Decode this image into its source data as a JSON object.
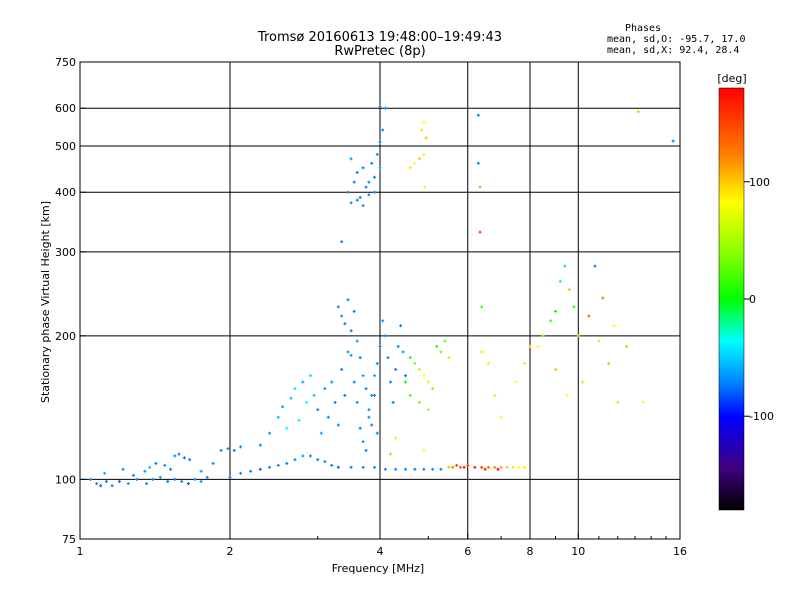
{
  "chart_data": {
    "type": "scatter",
    "title": "Tromsø 20160613 19:48:00–19:49:43",
    "subtitle": "RwPretec (8p)",
    "xlabel": "Frequency [MHz]",
    "ylabel": "Stationary phase Virtual Height [km]",
    "x_scale": "log",
    "y_scale": "log",
    "xlim": [
      1,
      16
    ],
    "ylim": [
      75,
      750
    ],
    "x_ticks": [
      1,
      2,
      4,
      6,
      8,
      10,
      16
    ],
    "x_tick_labels": [
      "1",
      "2",
      "4",
      "6",
      "8",
      "10",
      "16"
    ],
    "y_ticks": [
      75,
      100,
      200,
      300,
      400,
      500,
      600,
      750
    ],
    "y_tick_labels": [
      "75",
      "100",
      "200",
      "300",
      "400",
      "500",
      "600",
      "750"
    ],
    "grid_x": [
      2,
      4,
      6,
      8,
      10
    ],
    "grid_y": [
      100,
      200,
      300,
      400,
      500,
      600
    ],
    "grid": true,
    "phases_title": "Phases",
    "phase_stats": [
      "mean, sd,O: -95.7, 17.0",
      "mean, sd,X:  92.4, 28.4"
    ],
    "colorbar": {
      "label": "[deg]",
      "range": [
        -180,
        180
      ],
      "ticks": [
        100,
        0,
        -100
      ],
      "tick_labels": [
        "100",
        "0",
        "-100"
      ]
    },
    "series": [
      {
        "points": [
          [
            1.05,
            100,
            -100
          ],
          [
            1.08,
            98,
            -95
          ],
          [
            1.1,
            97,
            -110
          ],
          [
            1.13,
            99,
            -100
          ],
          [
            1.16,
            97,
            -98
          ],
          [
            1.2,
            99,
            -105
          ],
          [
            1.25,
            98,
            -90
          ],
          [
            1.3,
            100,
            -100
          ],
          [
            1.36,
            98,
            -95
          ],
          [
            1.4,
            100,
            -100
          ],
          [
            1.45,
            101,
            -90
          ],
          [
            1.5,
            99,
            -100
          ],
          [
            1.55,
            100,
            -105
          ],
          [
            1.6,
            99,
            -95
          ],
          [
            1.65,
            98,
            -110
          ],
          [
            1.7,
            100,
            -100
          ],
          [
            1.75,
            99,
            -90
          ],
          [
            1.8,
            101,
            -100
          ],
          [
            1.12,
            103,
            -85
          ],
          [
            1.22,
            105,
            -95
          ],
          [
            1.28,
            102,
            -100
          ],
          [
            1.35,
            104,
            -90
          ],
          [
            1.38,
            106,
            -80
          ],
          [
            1.42,
            108,
            -100
          ],
          [
            1.48,
            107,
            -95
          ],
          [
            1.52,
            105,
            -100
          ],
          [
            1.55,
            112,
            -95
          ],
          [
            1.58,
            113,
            -100
          ],
          [
            1.62,
            111,
            -105
          ],
          [
            1.66,
            110,
            -100
          ],
          [
            1.75,
            104,
            -90
          ],
          [
            1.85,
            108,
            -95
          ],
          [
            1.92,
            115,
            -100
          ],
          [
            1.98,
            116,
            -90
          ],
          [
            2.04,
            115,
            -100
          ],
          [
            2.1,
            117,
            -95
          ],
          [
            2.0,
            101,
            -100
          ],
          [
            2.1,
            103,
            -95
          ],
          [
            2.2,
            104,
            -100
          ],
          [
            2.3,
            105,
            -110
          ],
          [
            2.4,
            106,
            -95
          ],
          [
            2.5,
            107,
            -100
          ],
          [
            2.6,
            108,
            -100
          ],
          [
            2.7,
            110,
            -95
          ],
          [
            2.8,
            112,
            -90
          ],
          [
            2.9,
            112,
            -100
          ],
          [
            3.0,
            110,
            -100
          ],
          [
            3.1,
            109,
            -95
          ],
          [
            3.2,
            107,
            -100
          ],
          [
            3.3,
            106,
            -110
          ],
          [
            3.5,
            106,
            -100
          ],
          [
            3.7,
            106,
            -100
          ],
          [
            3.9,
            106,
            -95
          ],
          [
            4.1,
            105,
            -100
          ],
          [
            4.3,
            105,
            -100
          ],
          [
            4.5,
            105,
            -95
          ],
          [
            4.7,
            105,
            -100
          ],
          [
            4.9,
            105,
            -100
          ],
          [
            5.1,
            105,
            -95
          ],
          [
            5.3,
            105,
            -100
          ],
          [
            2.3,
            118,
            -100
          ],
          [
            2.4,
            125,
            -90
          ],
          [
            2.5,
            135,
            -80
          ],
          [
            2.55,
            142,
            -90
          ],
          [
            2.6,
            128,
            -60
          ],
          [
            2.65,
            148,
            -80
          ],
          [
            2.7,
            155,
            -70
          ],
          [
            2.75,
            133,
            -50
          ],
          [
            2.8,
            160,
            -90
          ],
          [
            2.85,
            145,
            -60
          ],
          [
            2.9,
            165,
            -70
          ],
          [
            2.95,
            150,
            -80
          ],
          [
            3.0,
            140,
            -100
          ],
          [
            3.05,
            125,
            -90
          ],
          [
            3.1,
            155,
            -95
          ],
          [
            3.15,
            135,
            -100
          ],
          [
            3.2,
            160,
            -90
          ],
          [
            3.25,
            145,
            -100
          ],
          [
            3.3,
            130,
            -95
          ],
          [
            3.35,
            170,
            -100
          ],
          [
            3.4,
            150,
            -100
          ],
          [
            3.45,
            185,
            -90
          ],
          [
            3.5,
            205,
            -100
          ],
          [
            3.55,
            225,
            -100
          ],
          [
            3.6,
            195,
            -95
          ],
          [
            3.65,
            180,
            -100
          ],
          [
            3.7,
            165,
            -90
          ],
          [
            3.75,
            155,
            -100
          ],
          [
            3.8,
            140,
            -95
          ],
          [
            3.85,
            130,
            -100
          ],
          [
            3.9,
            150,
            -100
          ],
          [
            3.95,
            175,
            -95
          ],
          [
            4.0,
            190,
            -100
          ],
          [
            4.05,
            215,
            -95
          ],
          [
            4.1,
            200,
            -100
          ],
          [
            4.15,
            180,
            -100
          ],
          [
            4.2,
            160,
            -95
          ],
          [
            4.25,
            145,
            -100
          ],
          [
            4.3,
            170,
            -100
          ],
          [
            4.35,
            190,
            -95
          ],
          [
            4.4,
            210,
            -100
          ],
          [
            4.45,
            185,
            -90
          ],
          [
            4.5,
            165,
            -100
          ],
          [
            3.3,
            230,
            -100
          ],
          [
            3.35,
            220,
            -95
          ],
          [
            3.4,
            212,
            -100
          ],
          [
            3.45,
            238,
            -100
          ],
          [
            3.5,
            182,
            -90
          ],
          [
            3.55,
            160,
            -100
          ],
          [
            3.6,
            145,
            -95
          ],
          [
            3.65,
            128,
            -100
          ],
          [
            3.7,
            120,
            -90
          ],
          [
            3.75,
            115,
            -100
          ],
          [
            3.8,
            135,
            -95
          ],
          [
            3.85,
            150,
            -100
          ],
          [
            3.9,
            165,
            -90
          ],
          [
            3.95,
            125,
            -100
          ],
          [
            3.45,
            400,
            -100
          ],
          [
            3.5,
            380,
            -95
          ],
          [
            3.55,
            420,
            -100
          ],
          [
            3.6,
            440,
            -100
          ],
          [
            3.65,
            390,
            -95
          ],
          [
            3.7,
            450,
            -100
          ],
          [
            3.75,
            410,
            -100
          ],
          [
            3.8,
            395,
            -95
          ],
          [
            3.85,
            460,
            -100
          ],
          [
            3.9,
            430,
            -100
          ],
          [
            3.95,
            480,
            -95
          ],
          [
            4.0,
            510,
            -100
          ],
          [
            4.05,
            540,
            -100
          ],
          [
            4.1,
            600,
            -95
          ],
          [
            3.5,
            470,
            -90
          ],
          [
            3.6,
            385,
            -100
          ],
          [
            3.7,
            375,
            -95
          ],
          [
            3.8,
            420,
            -100
          ],
          [
            3.9,
            400,
            -100
          ],
          [
            4.0,
            450,
            -90
          ],
          [
            3.35,
            315,
            -100
          ],
          [
            4.0,
            605,
            -100
          ],
          [
            4.6,
            180,
            20
          ],
          [
            4.7,
            175,
            60
          ],
          [
            4.8,
            170,
            80
          ],
          [
            4.9,
            165,
            100
          ],
          [
            5.0,
            160,
            90
          ],
          [
            5.1,
            155,
            120
          ],
          [
            5.2,
            190,
            30
          ],
          [
            5.3,
            185,
            60
          ],
          [
            5.4,
            195,
            50
          ],
          [
            5.5,
            180,
            80
          ],
          [
            4.9,
            115,
            100
          ],
          [
            4.2,
            113,
            120
          ],
          [
            4.3,
            122,
            90
          ],
          [
            4.6,
            450,
            110
          ],
          [
            4.7,
            460,
            100
          ],
          [
            4.8,
            470,
            120
          ],
          [
            4.9,
            480,
            90
          ],
          [
            4.85,
            540,
            110
          ],
          [
            4.9,
            560,
            100
          ],
          [
            4.95,
            520,
            120
          ],
          [
            4.92,
            410,
            90
          ],
          [
            5.5,
            106,
            120
          ],
          [
            5.6,
            106,
            140
          ],
          [
            5.7,
            107,
            160
          ],
          [
            5.8,
            106,
            150
          ],
          [
            5.9,
            106,
            170
          ],
          [
            6.0,
            107,
            160
          ],
          [
            6.2,
            106,
            170
          ],
          [
            6.4,
            106,
            160
          ],
          [
            6.6,
            106,
            150
          ],
          [
            6.8,
            106,
            140
          ],
          [
            7.0,
            106,
            130
          ],
          [
            7.2,
            106,
            120
          ],
          [
            7.4,
            106,
            110
          ],
          [
            7.6,
            106,
            100
          ],
          [
            7.8,
            106,
            90
          ],
          [
            6.5,
            105,
            170
          ],
          [
            6.9,
            105,
            180
          ],
          [
            6.3,
            580,
            -100
          ],
          [
            6.3,
            460,
            -100
          ],
          [
            6.35,
            410,
            130
          ],
          [
            6.35,
            330,
            160
          ],
          [
            6.4,
            230,
            40
          ],
          [
            6.4,
            185,
            80
          ],
          [
            6.6,
            175,
            90
          ],
          [
            6.8,
            150,
            110
          ],
          [
            7.0,
            135,
            100
          ],
          [
            7.5,
            160,
            100
          ],
          [
            7.8,
            175,
            110
          ],
          [
            8.0,
            190,
            120
          ],
          [
            8.3,
            190,
            100
          ],
          [
            8.5,
            200,
            60
          ],
          [
            8.8,
            215,
            40
          ],
          [
            9.0,
            225,
            20
          ],
          [
            9.2,
            260,
            -40
          ],
          [
            9.4,
            280,
            0
          ],
          [
            9.6,
            250,
            120
          ],
          [
            9.8,
            230,
            30
          ],
          [
            10.0,
            200,
            120
          ],
          [
            10.5,
            220,
            150
          ],
          [
            11.0,
            195,
            80
          ],
          [
            10.8,
            280,
            -100
          ],
          [
            11.2,
            240,
            140
          ],
          [
            11.8,
            210,
            100
          ],
          [
            12.5,
            190,
            60
          ],
          [
            9.0,
            170,
            120
          ],
          [
            9.5,
            150,
            100
          ],
          [
            10.2,
            160,
            80
          ],
          [
            11.5,
            175,
            120
          ],
          [
            12.0,
            145,
            110
          ],
          [
            13.2,
            590,
            120
          ],
          [
            15.5,
            512,
            -100
          ],
          [
            13.5,
            145,
            100
          ],
          [
            4.5,
            160,
            20
          ],
          [
            4.6,
            150,
            40
          ],
          [
            4.8,
            145,
            60
          ],
          [
            5.0,
            140,
            80
          ]
        ]
      }
    ]
  }
}
